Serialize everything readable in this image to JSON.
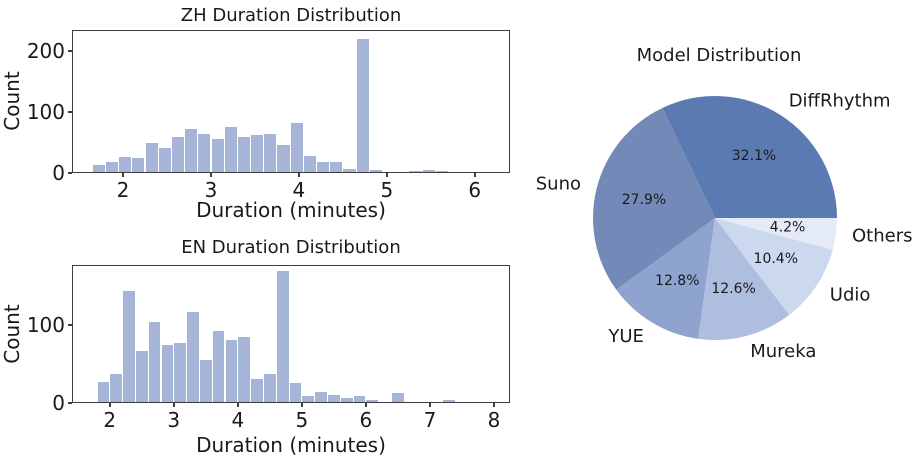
{
  "figure": {
    "background": "#ffffff",
    "text_color": "#1a1a1a",
    "axis_color": "#3e3e3e"
  },
  "chart_data": [
    {
      "type": "bar",
      "subtype": "histogram",
      "id": "zh",
      "title": "ZH Duration Distribution",
      "xlabel": "Duration (minutes)",
      "ylabel": "Count",
      "bar_color": "#a6b5d7",
      "bin_start": 1.65,
      "bin_width": 0.15,
      "counts": [
        12,
        16,
        24,
        23,
        48,
        39,
        58,
        71,
        63,
        54,
        74,
        58,
        60,
        62,
        44,
        80,
        26,
        17,
        16,
        5,
        218,
        4,
        0,
        0,
        2,
        3,
        2
      ],
      "xlim": [
        1.42,
        6.4
      ],
      "ylim": [
        0,
        234
      ],
      "xticks": [
        2,
        3,
        4,
        5,
        6
      ],
      "yticks": [
        0,
        100,
        200
      ],
      "grid": false,
      "legend_position": "none"
    },
    {
      "type": "bar",
      "subtype": "histogram",
      "id": "en",
      "title": "EN Duration Distribution",
      "xlabel": "Duration (minutes)",
      "ylabel": "Count",
      "bar_color": "#a6b5d7",
      "bin_start": 1.8,
      "bin_width": 0.2,
      "counts": [
        26,
        36,
        143,
        66,
        103,
        73,
        76,
        116,
        54,
        91,
        79,
        84,
        29,
        36,
        168,
        24,
        8,
        13,
        9,
        5,
        8,
        3,
        0,
        11,
        0,
        0,
        0,
        2
      ],
      "xlim": [
        1.41,
        8.25
      ],
      "ylim": [
        0,
        177
      ],
      "xticks": [
        2,
        3,
        4,
        5,
        6,
        7,
        8
      ],
      "yticks": [
        0,
        100
      ],
      "grid": false,
      "legend_position": "none"
    },
    {
      "type": "pie",
      "id": "model",
      "title": "Model Distribution",
      "labels": [
        "DiffRhythm",
        "Suno",
        "YUE",
        "Mureka",
        "Udio",
        "Others"
      ],
      "values": [
        32.1,
        27.9,
        12.8,
        12.6,
        10.4,
        4.2
      ],
      "pct_labels": [
        "32.1%",
        "27.9%",
        "12.8%",
        "12.6%",
        "10.4%",
        "4.2%"
      ],
      "colors": [
        "#5b7ab1",
        "#7389b7",
        "#8ea3cd",
        "#aebede",
        "#ccd8ee",
        "#e4eaf6"
      ],
      "start_angle_deg": 0,
      "direction": "counterclockwise",
      "legend_position": "none",
      "grid": false
    }
  ]
}
